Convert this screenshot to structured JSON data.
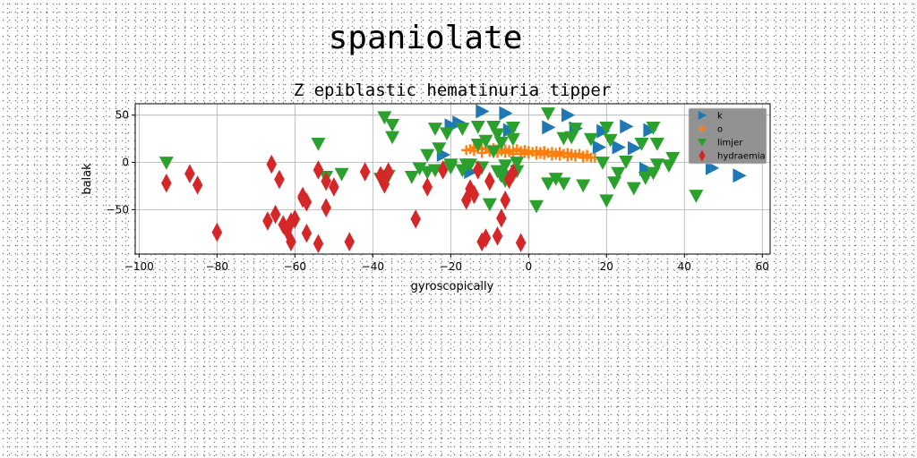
{
  "page_title": "spaniolate",
  "chart_data": {
    "type": "scatter",
    "title": "Z epiblastic hematinuria tipper",
    "xlabel": "gyroscopically",
    "ylabel": "balak",
    "xlim": [
      -101,
      62
    ],
    "ylim": [
      -97,
      62
    ],
    "xticks": [
      -100,
      -80,
      -60,
      -40,
      -20,
      0,
      20,
      40,
      60
    ],
    "xtick_labels": [
      "−100",
      "−80",
      "−60",
      "−40",
      "−20",
      "0",
      "20",
      "40",
      "60"
    ],
    "yticks": [
      -50,
      0,
      50
    ],
    "ytick_labels": [
      "−50",
      "0",
      "50"
    ],
    "grid": true,
    "legend": {
      "placement": "top-right",
      "background": "#8c8c8c"
    },
    "series": [
      {
        "name": "k",
        "color": "#1f77b4",
        "marker": "triangle-right",
        "points": [
          [
            -12,
            54
          ],
          [
            -6,
            52
          ],
          [
            -20,
            39
          ],
          [
            -18,
            42
          ],
          [
            -5,
            34
          ],
          [
            10,
            50
          ],
          [
            5,
            37
          ],
          [
            12,
            36
          ],
          [
            19,
            33
          ],
          [
            25,
            38
          ],
          [
            31,
            34
          ],
          [
            18,
            16
          ],
          [
            23,
            16
          ],
          [
            27,
            15
          ],
          [
            -22,
            8
          ],
          [
            -15,
            -10
          ],
          [
            -6,
            -12
          ],
          [
            30,
            -7
          ],
          [
            47,
            -6
          ],
          [
            54,
            -14
          ]
        ]
      },
      {
        "name": "o",
        "color": "#ff7f0e",
        "marker": "plus",
        "points": [
          [
            -15,
            14
          ],
          [
            -13,
            15
          ],
          [
            -12,
            14
          ],
          [
            -11,
            15
          ],
          [
            -10,
            13
          ],
          [
            -9,
            15
          ],
          [
            -8,
            14
          ],
          [
            -7,
            12
          ],
          [
            -6,
            14
          ],
          [
            -5,
            13
          ],
          [
            -4,
            12
          ],
          [
            -3,
            14
          ],
          [
            -2,
            12
          ],
          [
            -1,
            13
          ],
          [
            0,
            12
          ],
          [
            1,
            11
          ],
          [
            2,
            12
          ],
          [
            3,
            11
          ],
          [
            4,
            12
          ],
          [
            5,
            10
          ],
          [
            6,
            11
          ],
          [
            7,
            10
          ],
          [
            8,
            11
          ],
          [
            9,
            9
          ],
          [
            10,
            10
          ],
          [
            11,
            9
          ],
          [
            12,
            8
          ],
          [
            13,
            9
          ],
          [
            14,
            7
          ],
          [
            15,
            8
          ],
          [
            -14,
            12
          ],
          [
            -12,
            10
          ],
          [
            -10,
            11
          ],
          [
            -8,
            10
          ],
          [
            -6,
            10
          ],
          [
            -4,
            9
          ],
          [
            -2,
            9
          ],
          [
            0,
            9
          ],
          [
            2,
            8
          ],
          [
            4,
            8
          ],
          [
            6,
            7
          ],
          [
            8,
            7
          ],
          [
            10,
            6
          ],
          [
            12,
            6
          ],
          [
            14,
            5
          ],
          [
            16,
            5
          ],
          [
            -16,
            13
          ],
          [
            -14,
            16
          ],
          [
            -9,
            12
          ],
          [
            -5,
            11
          ],
          [
            -1,
            10
          ],
          [
            3,
            9
          ],
          [
            7,
            8
          ],
          [
            11,
            7
          ],
          [
            15,
            6
          ],
          [
            17,
            5
          ]
        ]
      },
      {
        "name": "limjer",
        "color": "#2ca02c",
        "marker": "triangle-down",
        "points": [
          [
            -93,
            0
          ],
          [
            -54,
            20
          ],
          [
            -37,
            48
          ],
          [
            -35,
            40
          ],
          [
            -35,
            27
          ],
          [
            -24,
            36
          ],
          [
            -21,
            31
          ],
          [
            -17,
            36
          ],
          [
            -13,
            38
          ],
          [
            -9,
            38
          ],
          [
            -8,
            30
          ],
          [
            -7,
            21
          ],
          [
            -4,
            25
          ],
          [
            -4,
            37
          ],
          [
            -11,
            23
          ],
          [
            -13,
            19
          ],
          [
            -9,
            12
          ],
          [
            5,
            52
          ],
          [
            9,
            26
          ],
          [
            11,
            27
          ],
          [
            12,
            36
          ],
          [
            16,
            25
          ],
          [
            20,
            37
          ],
          [
            21,
            24
          ],
          [
            29,
            20
          ],
          [
            33,
            20
          ],
          [
            32,
            37
          ],
          [
            19,
            0
          ],
          [
            25,
            1
          ],
          [
            33,
            -2
          ],
          [
            36,
            -3
          ],
          [
            37,
            5
          ],
          [
            -23,
            15
          ],
          [
            -26,
            8
          ],
          [
            -30,
            -15
          ],
          [
            -26,
            -10
          ],
          [
            -24,
            -8
          ],
          [
            -20,
            -5
          ],
          [
            -17,
            -8
          ],
          [
            -16,
            -2
          ],
          [
            -8,
            -9
          ],
          [
            -7,
            -14
          ],
          [
            -6,
            -19
          ],
          [
            -10,
            -44
          ],
          [
            -3,
            -9
          ],
          [
            2,
            -46
          ],
          [
            5,
            -22
          ],
          [
            7,
            -17
          ],
          [
            9,
            -22
          ],
          [
            14,
            -24
          ],
          [
            20,
            -40
          ],
          [
            22,
            -21
          ],
          [
            23,
            -11
          ],
          [
            27,
            -27
          ],
          [
            30,
            -16
          ],
          [
            32,
            -11
          ],
          [
            43,
            -35
          ],
          [
            -52,
            -15
          ],
          [
            -48,
            -12
          ],
          [
            -38,
            -17
          ],
          [
            -36,
            -14
          ],
          [
            -28,
            -6
          ],
          [
            -20,
            -2
          ],
          [
            -15,
            -2
          ],
          [
            -12,
            -5
          ],
          [
            -6,
            -3
          ],
          [
            -3,
            0
          ]
        ]
      },
      {
        "name": "hydraemia",
        "color": "#d62728",
        "marker": "thin-diamond",
        "points": [
          [
            -93,
            -22
          ],
          [
            -87,
            -12
          ],
          [
            -85,
            -24
          ],
          [
            -80,
            -74
          ],
          [
            -66,
            -2
          ],
          [
            -65,
            -55
          ],
          [
            -67,
            -62
          ],
          [
            -63,
            -66
          ],
          [
            -64,
            -18
          ],
          [
            -62,
            -72
          ],
          [
            -61,
            -63
          ],
          [
            -61,
            -84
          ],
          [
            -58,
            -38
          ],
          [
            -57,
            -75
          ],
          [
            -58,
            -36
          ],
          [
            -54,
            -8
          ],
          [
            -54,
            -86
          ],
          [
            -52,
            -48
          ],
          [
            -52,
            -20
          ],
          [
            -50,
            -26
          ],
          [
            -46,
            -84
          ],
          [
            -42,
            -10
          ],
          [
            -38,
            -14
          ],
          [
            -37,
            -23
          ],
          [
            -36,
            -10
          ],
          [
            -29,
            -60
          ],
          [
            -26,
            -26
          ],
          [
            -22,
            -8
          ],
          [
            -16,
            -40
          ],
          [
            -15,
            -28
          ],
          [
            -13,
            -8
          ],
          [
            -12,
            -84
          ],
          [
            -8,
            -78
          ],
          [
            -7,
            -59
          ],
          [
            -6,
            -40
          ],
          [
            -5,
            -18
          ],
          [
            -4,
            -11
          ],
          [
            -2,
            -85
          ],
          [
            -11,
            -80
          ],
          [
            -14,
            -34
          ],
          [
            -10,
            -20
          ],
          [
            -57,
            -42
          ],
          [
            -60,
            -60
          ]
        ]
      }
    ]
  }
}
